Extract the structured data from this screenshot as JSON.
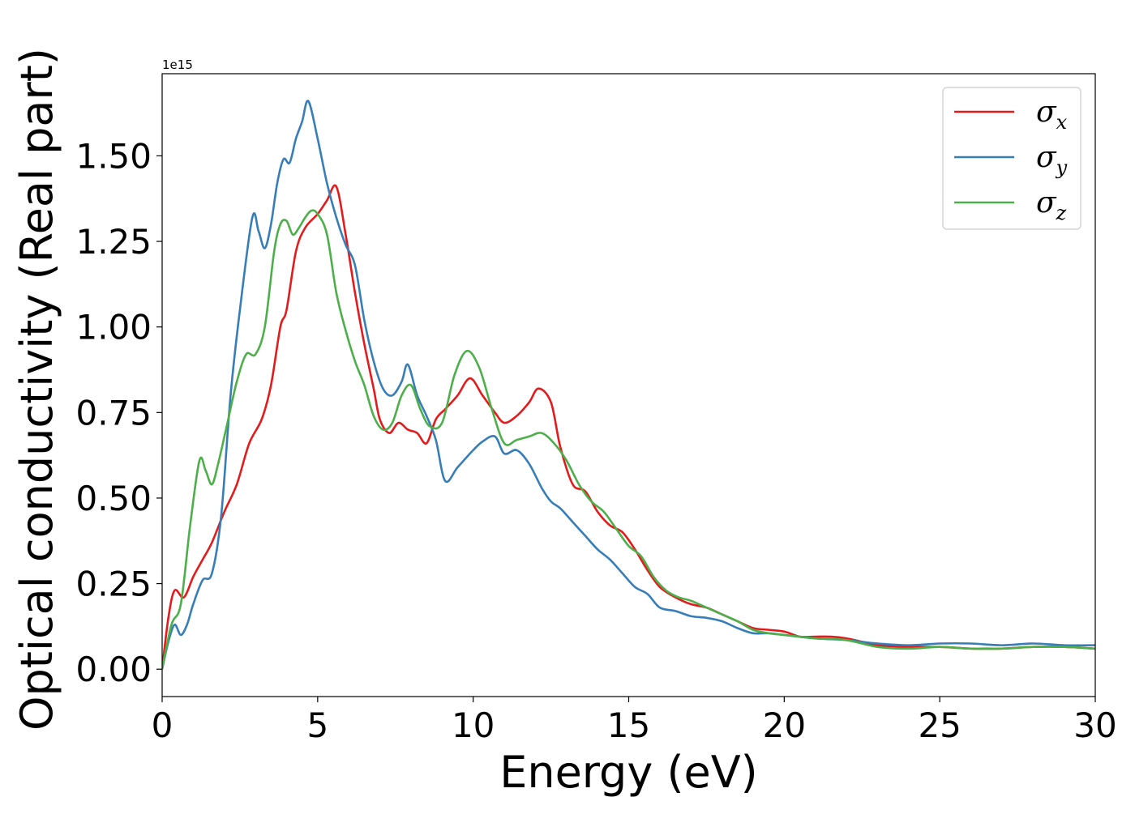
{
  "chart_data": {
    "type": "line",
    "xlabel": "Energy (eV)",
    "ylabel": "Optical conductivity (Real part)",
    "y_offset_label": "1e15",
    "xlim": [
      0,
      30
    ],
    "ylim": [
      -0.08,
      1.74
    ],
    "x_ticks": [
      0,
      5,
      10,
      15,
      20,
      25,
      30
    ],
    "y_ticks": [
      0.0,
      0.25,
      0.5,
      0.75,
      1.0,
      1.25,
      1.5
    ],
    "x_tick_labels": [
      "0",
      "5",
      "10",
      "15",
      "20",
      "25",
      "30"
    ],
    "y_tick_labels": [
      "0.00",
      "0.25",
      "0.50",
      "0.75",
      "1.00",
      "1.25",
      "1.50"
    ],
    "legend_position": "top-right",
    "grid": false,
    "series": [
      {
        "name": "σx",
        "symbol": "σ",
        "subscript": "x",
        "color": "#e41a1c",
        "x": [
          0,
          0.2,
          0.4,
          0.7,
          1.0,
          1.3,
          1.6,
          2.0,
          2.4,
          2.8,
          3.2,
          3.5,
          3.8,
          4.0,
          4.3,
          4.6,
          5.0,
          5.3,
          5.6,
          5.9,
          6.2,
          6.5,
          6.8,
          7.0,
          7.3,
          7.6,
          7.9,
          8.2,
          8.5,
          8.8,
          9.1,
          9.5,
          9.9,
          10.3,
          10.7,
          11.0,
          11.4,
          11.8,
          12.1,
          12.5,
          12.8,
          13.2,
          13.6,
          14.0,
          14.4,
          14.8,
          15.2,
          15.6,
          16.0,
          16.5,
          17.0,
          17.5,
          18.0,
          18.5,
          19.0,
          19.5,
          20.0,
          20.5,
          21.0,
          21.5,
          22.0,
          22.5,
          23.0,
          24.0,
          25.0,
          26.0,
          26.5,
          27.0,
          28.0,
          29.0,
          30.0
        ],
        "values": [
          0.0,
          0.15,
          0.23,
          0.21,
          0.27,
          0.32,
          0.37,
          0.46,
          0.54,
          0.66,
          0.73,
          0.83,
          1.0,
          1.05,
          1.22,
          1.29,
          1.33,
          1.37,
          1.41,
          1.27,
          1.1,
          0.95,
          0.82,
          0.73,
          0.69,
          0.72,
          0.7,
          0.69,
          0.66,
          0.73,
          0.76,
          0.8,
          0.85,
          0.8,
          0.75,
          0.72,
          0.74,
          0.78,
          0.82,
          0.78,
          0.65,
          0.54,
          0.52,
          0.46,
          0.42,
          0.4,
          0.35,
          0.29,
          0.24,
          0.21,
          0.19,
          0.18,
          0.16,
          0.14,
          0.12,
          0.115,
          0.11,
          0.095,
          0.095,
          0.095,
          0.09,
          0.08,
          0.07,
          0.065,
          0.065,
          0.06,
          0.06,
          0.06,
          0.065,
          0.065,
          0.06
        ]
      },
      {
        "name": "σy",
        "symbol": "σ",
        "subscript": "y",
        "color": "#377eb8",
        "x": [
          0,
          0.2,
          0.4,
          0.6,
          0.8,
          1.0,
          1.3,
          1.6,
          1.9,
          2.2,
          2.5,
          2.9,
          3.1,
          3.3,
          3.5,
          3.7,
          3.9,
          4.1,
          4.3,
          4.5,
          4.7,
          5.0,
          5.3,
          5.6,
          5.9,
          6.2,
          6.5,
          6.8,
          7.1,
          7.4,
          7.7,
          7.9,
          8.2,
          8.5,
          8.8,
          9.1,
          9.5,
          10.0,
          10.3,
          10.7,
          11.0,
          11.4,
          11.8,
          12.2,
          12.5,
          12.8,
          13.2,
          13.6,
          14.0,
          14.4,
          14.8,
          15.2,
          15.6,
          16.0,
          16.5,
          17.0,
          17.5,
          18.0,
          18.5,
          19.0,
          19.5,
          20.0,
          21.0,
          22.0,
          23.0,
          24.0,
          25.0,
          26.0,
          27.0,
          28.0,
          29.0,
          30.0
        ],
        "values": [
          0.0,
          0.08,
          0.13,
          0.1,
          0.13,
          0.19,
          0.26,
          0.28,
          0.45,
          0.8,
          1.05,
          1.32,
          1.28,
          1.23,
          1.3,
          1.42,
          1.49,
          1.48,
          1.55,
          1.6,
          1.66,
          1.55,
          1.42,
          1.32,
          1.24,
          1.18,
          1.02,
          0.9,
          0.82,
          0.8,
          0.84,
          0.89,
          0.8,
          0.74,
          0.67,
          0.55,
          0.59,
          0.64,
          0.665,
          0.68,
          0.63,
          0.64,
          0.6,
          0.53,
          0.49,
          0.47,
          0.43,
          0.39,
          0.35,
          0.32,
          0.28,
          0.24,
          0.22,
          0.18,
          0.17,
          0.155,
          0.15,
          0.14,
          0.12,
          0.105,
          0.105,
          0.1,
          0.09,
          0.085,
          0.075,
          0.07,
          0.075,
          0.075,
          0.07,
          0.075,
          0.07,
          0.07
        ]
      },
      {
        "name": "σz",
        "symbol": "σ",
        "subscript": "z",
        "color": "#4daf4a",
        "x": [
          0,
          0.3,
          0.6,
          0.9,
          1.2,
          1.4,
          1.6,
          1.8,
          2.1,
          2.4,
          2.7,
          3.0,
          3.3,
          3.6,
          3.8,
          4.0,
          4.2,
          4.4,
          4.6,
          4.8,
          5.0,
          5.3,
          5.6,
          5.9,
          6.2,
          6.5,
          6.8,
          7.1,
          7.4,
          7.7,
          8.0,
          8.3,
          8.6,
          9.0,
          9.4,
          9.8,
          10.2,
          10.6,
          11.0,
          11.4,
          11.8,
          12.2,
          12.6,
          13.0,
          13.4,
          13.8,
          14.2,
          14.6,
          15.0,
          15.4,
          15.8,
          16.2,
          16.6,
          17.0,
          17.5,
          18.0,
          18.5,
          19.0,
          19.5,
          20.0,
          21.0,
          22.0,
          23.0,
          24.0,
          25.0,
          26.0,
          27.0,
          28.0,
          29.0,
          30.0
        ],
        "values": [
          0.0,
          0.13,
          0.19,
          0.42,
          0.61,
          0.58,
          0.54,
          0.6,
          0.72,
          0.84,
          0.92,
          0.92,
          1.0,
          1.22,
          1.3,
          1.31,
          1.27,
          1.29,
          1.32,
          1.34,
          1.33,
          1.27,
          1.1,
          0.99,
          0.9,
          0.83,
          0.74,
          0.7,
          0.72,
          0.8,
          0.83,
          0.76,
          0.71,
          0.72,
          0.86,
          0.93,
          0.88,
          0.76,
          0.66,
          0.67,
          0.68,
          0.69,
          0.66,
          0.61,
          0.54,
          0.49,
          0.46,
          0.41,
          0.36,
          0.33,
          0.27,
          0.23,
          0.21,
          0.2,
          0.18,
          0.16,
          0.14,
          0.115,
          0.105,
          0.1,
          0.09,
          0.085,
          0.065,
          0.06,
          0.065,
          0.06,
          0.06,
          0.065,
          0.065,
          0.06
        ]
      }
    ]
  }
}
